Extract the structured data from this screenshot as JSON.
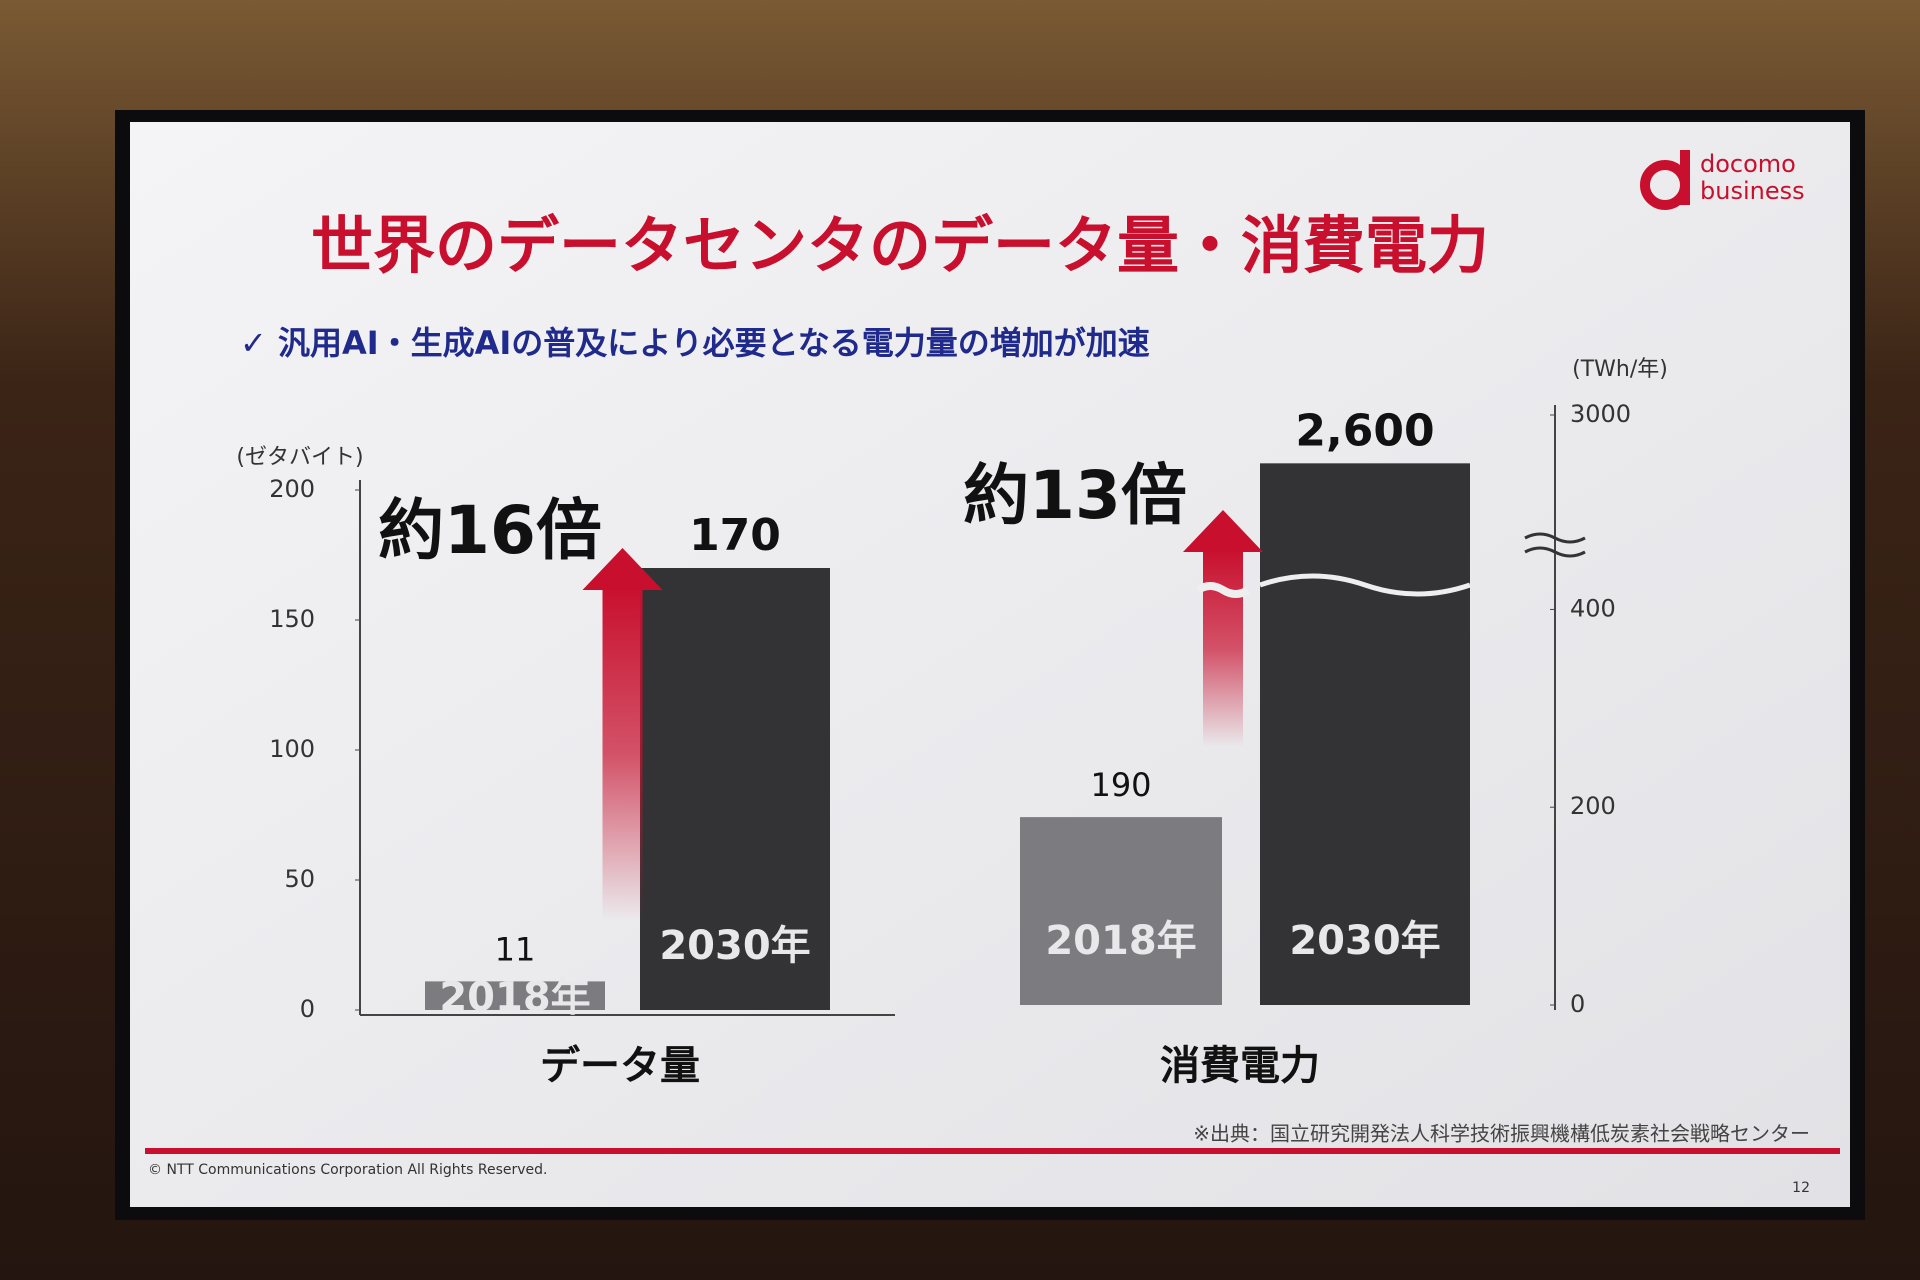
{
  "slide": {
    "title": "世界のデータセンタのデータ量・消費電力",
    "subtitle": "✓ 汎用AI・生成AIの普及により必要となる電力量の増加が加速",
    "logo_top": "docomo",
    "logo_bottom": "business",
    "source": "※出典：国立研究開発法人科学技術振興機構低炭素社会戦略センター",
    "copyright": "© NTT Communications Corporation All Rights Reserved.",
    "page": "12"
  },
  "chart_data": [
    {
      "type": "bar",
      "y_label": "(ゼタバイト)",
      "x_label": "データ量",
      "annotation": "約16倍",
      "categories": [
        "2018年",
        "2030年"
      ],
      "values": [
        11,
        170
      ],
      "colors": [
        "#7c7c80",
        "#333336"
      ],
      "ylim": [
        0,
        200
      ],
      "yticks": [
        0,
        50,
        100,
        150,
        200
      ],
      "axis_side": "left"
    },
    {
      "type": "bar",
      "y_label": "(TWh/年)",
      "x_label": "消費電力",
      "annotation": "約13倍",
      "categories": [
        "2018年",
        "2030年"
      ],
      "values": [
        190,
        2600
      ],
      "value_labels": [
        "190",
        "2,600"
      ],
      "colors": [
        "#7c7c80",
        "#333336"
      ],
      "ylim": [
        0,
        3000
      ],
      "yticks": [
        0,
        200,
        400,
        3000
      ],
      "axis_break": [
        450,
        1800
      ],
      "axis_side": "right"
    }
  ]
}
